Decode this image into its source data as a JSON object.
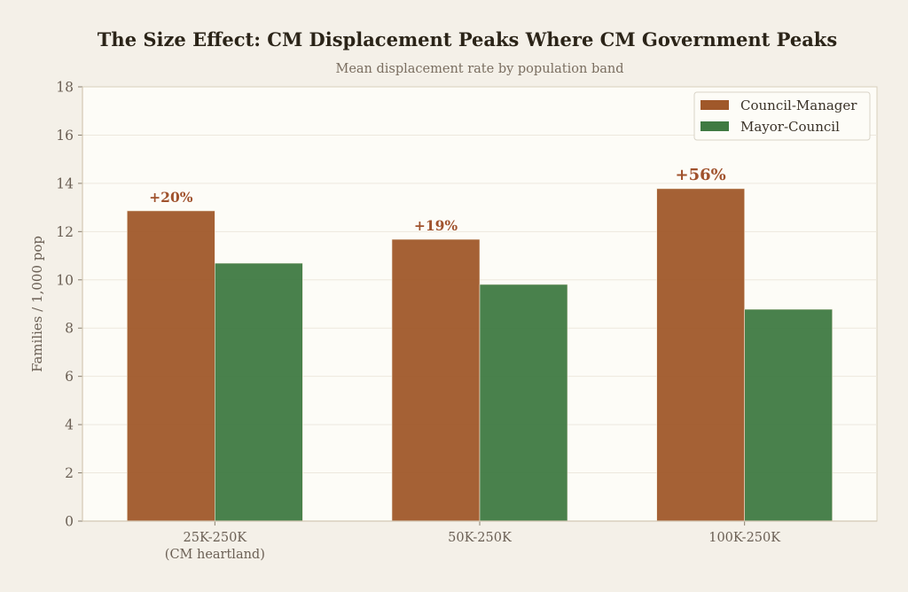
{
  "chart_data": {
    "type": "bar",
    "title": "The Size Effect: CM Displacement Peaks Where CM Government Peaks",
    "subtitle": "Mean displacement rate by population band",
    "xlabel": "",
    "ylabel": "Families / 1,000 pop",
    "ylim": [
      0,
      18
    ],
    "yticks": [
      "0",
      "2",
      "4",
      "6",
      "8",
      "10",
      "12",
      "14",
      "16",
      "18"
    ],
    "grid": true,
    "legend_position": "top-right",
    "categories": [
      {
        "line1": "25K-250K",
        "line2": "(CM heartland)"
      },
      {
        "line1": "50K-250K",
        "line2": ""
      },
      {
        "line1": "100K-250K",
        "line2": ""
      }
    ],
    "series": [
      {
        "name": "Council-Manager",
        "color": "#a0582a",
        "values": [
          12.86,
          11.68,
          13.78
        ]
      },
      {
        "name": "Mayor-Council",
        "color": "#3f7a42",
        "values": [
          10.69,
          9.81,
          8.78
        ]
      }
    ],
    "annotations": [
      {
        "text": "+20%",
        "emphasis": false
      },
      {
        "text": "+19%",
        "emphasis": false
      },
      {
        "text": "+56%",
        "emphasis": true
      }
    ]
  }
}
